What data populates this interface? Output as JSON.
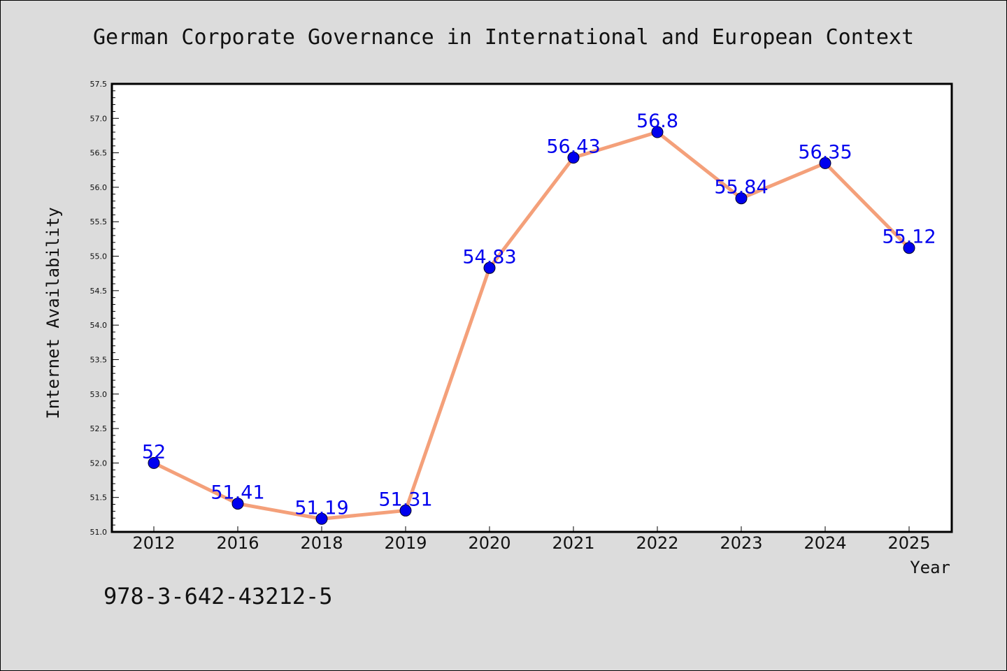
{
  "chart_data": {
    "type": "line",
    "title": "German Corporate Governance in International and European Context",
    "xlabel": "Year",
    "ylabel": "Internet Availability",
    "categories": [
      "2012",
      "2016",
      "2018",
      "2019",
      "2020",
      "2021",
      "2022",
      "2023",
      "2024",
      "2025"
    ],
    "values": [
      52,
      51.41,
      51.19,
      51.31,
      54.83,
      56.43,
      56.8,
      55.84,
      56.35,
      55.12
    ],
    "data_labels": [
      "52",
      "51.41",
      "51.19",
      "51.31",
      "54.83",
      "56.43",
      "56.8",
      "55.84",
      "56.35",
      "55.12"
    ],
    "ylim": [
      51.0,
      57.5
    ],
    "yticks": [
      "51.0",
      "51.5",
      "52.0",
      "52.5",
      "53.0",
      "53.5",
      "54.0",
      "54.5",
      "55.0",
      "55.5",
      "56.0",
      "56.5",
      "57.0",
      "57.5"
    ],
    "grid": false,
    "legend": "none",
    "colors": {
      "line": "#f4a07a",
      "marker": "#0000ee",
      "label": "#0000ee",
      "background": "#dcdcdc",
      "plot_background": "#ffffff"
    }
  },
  "footer": {
    "isbn": "978-3-642-43212-5"
  }
}
